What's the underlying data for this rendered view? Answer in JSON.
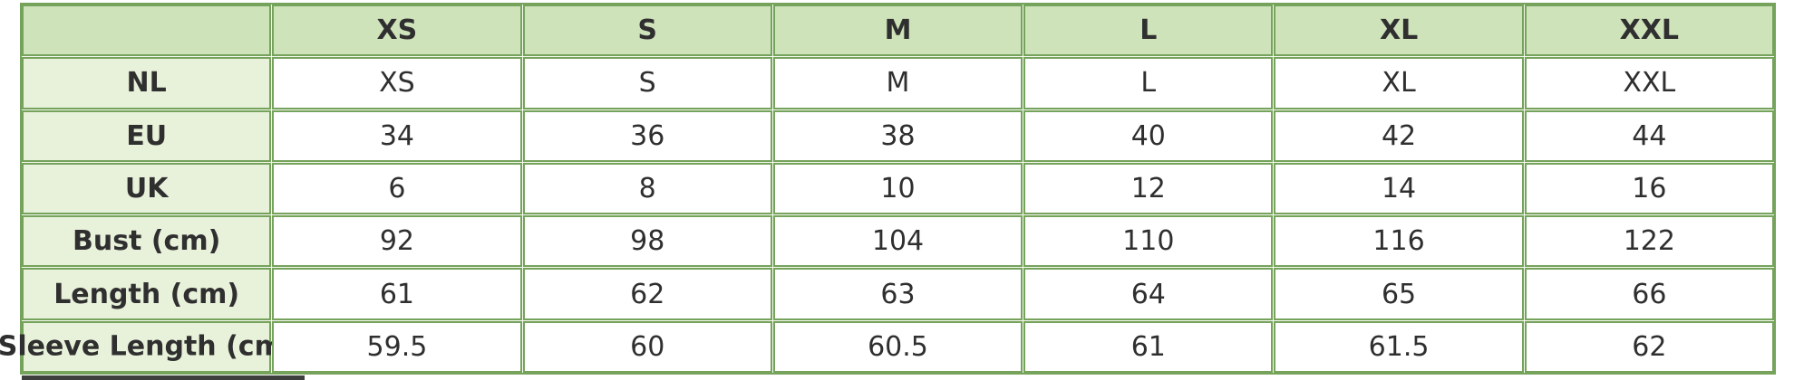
{
  "table": {
    "corner_label": "",
    "columns": [
      "XS",
      "S",
      "M",
      "L",
      "XL",
      "XXL"
    ],
    "rows": [
      {
        "label": "NL",
        "values": [
          "XS",
          "S",
          "M",
          "L",
          "XL",
          "XXL"
        ]
      },
      {
        "label": "EU",
        "values": [
          "34",
          "36",
          "38",
          "40",
          "42",
          "44"
        ]
      },
      {
        "label": "UK",
        "values": [
          "6",
          "8",
          "10",
          "12",
          "14",
          "16"
        ]
      },
      {
        "label": "Bust (cm)",
        "values": [
          "92",
          "98",
          "104",
          "110",
          "116",
          "122"
        ]
      },
      {
        "label": "Length (cm)",
        "values": [
          "61",
          "62",
          "63",
          "64",
          "65",
          "66"
        ]
      },
      {
        "label": "Sleeve Length (cm)",
        "values": [
          "59.5",
          "60",
          "60.5",
          "61",
          "61.5",
          "62"
        ]
      }
    ]
  },
  "colors": {
    "border_green": "#76a35c",
    "header_bg": "#cfe3ba",
    "label_bg": "#e8f1da",
    "cell_bg": "#ffffff",
    "text": "#2f2f2f",
    "scrollbar_thumb": "#3e3e3e"
  }
}
